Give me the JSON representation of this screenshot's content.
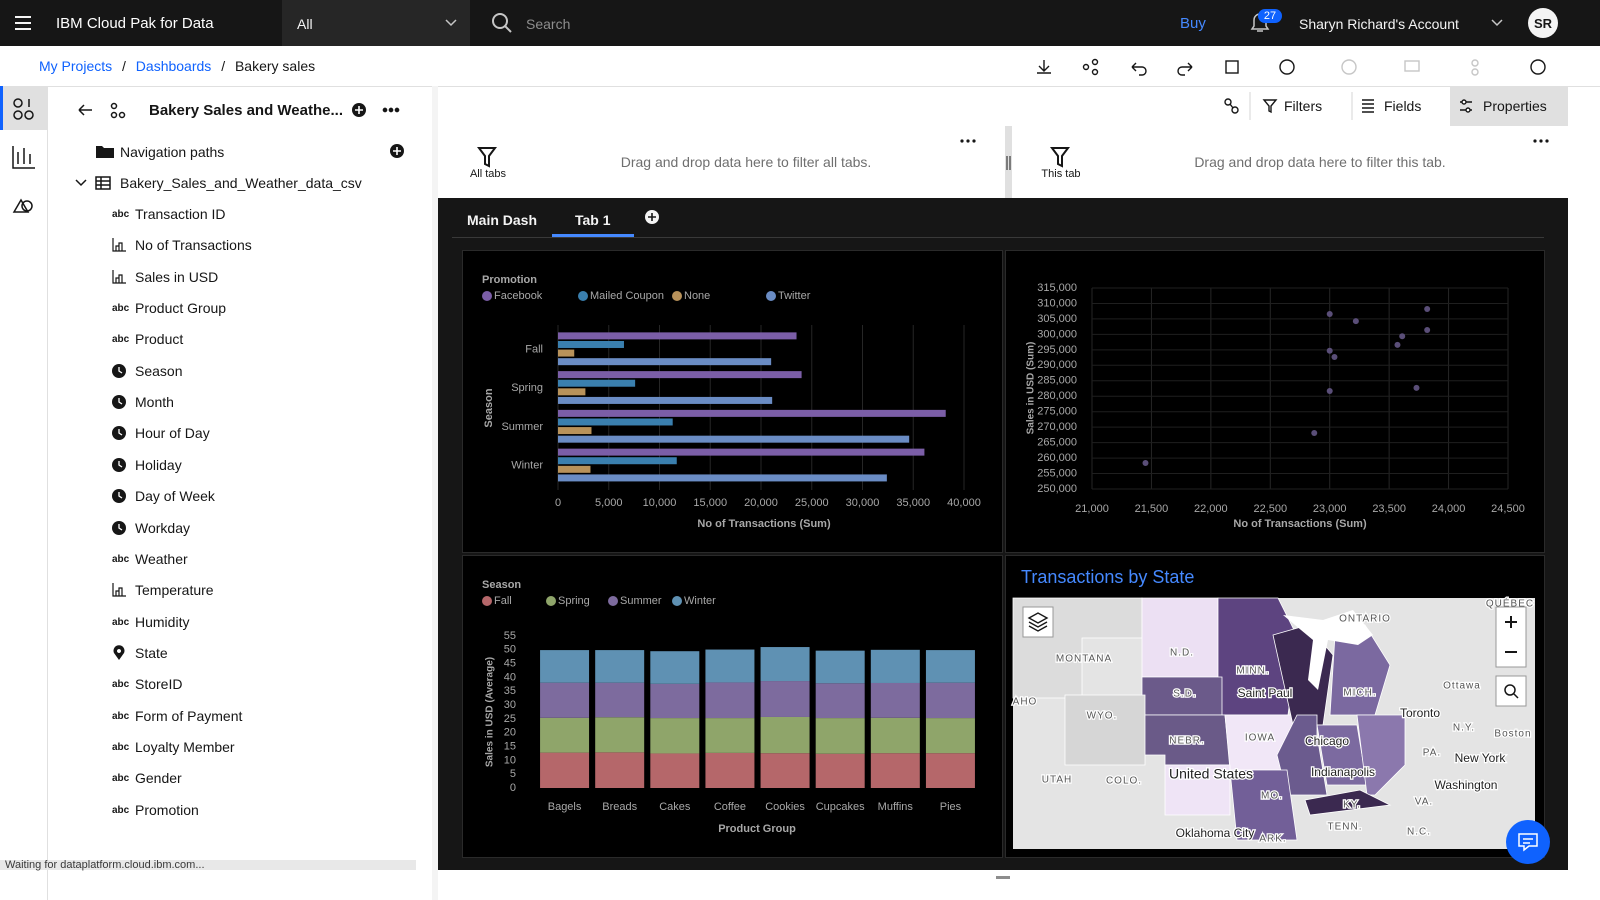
{
  "header": {
    "product": "IBM Cloud Pak for Data",
    "scope": "All",
    "search_placeholder": "Search",
    "buy": "Buy",
    "notifications": 27,
    "account": "Sharyn Richard's Account",
    "avatar": "SR"
  },
  "breadcrumb": {
    "items": [
      "My Projects",
      "Dashboards",
      "Bakery sales"
    ],
    "separator": "/"
  },
  "sidebar": {
    "title": "Bakery Sales and Weathe...",
    "text_icon": "abc",
    "tree": [
      {
        "label": "Navigation paths"
      },
      {
        "label": "Bakery_Sales_and_Weather_data_csv"
      }
    ],
    "fields": [
      {
        "type": "text",
        "label": "Transaction ID"
      },
      {
        "type": "measure",
        "label": "No of Transactions"
      },
      {
        "type": "measure",
        "label": "Sales in USD"
      },
      {
        "type": "text",
        "label": "Product Group"
      },
      {
        "type": "text",
        "label": "Product"
      },
      {
        "type": "time",
        "label": "Season"
      },
      {
        "type": "time",
        "label": "Month"
      },
      {
        "type": "time",
        "label": "Hour of Day"
      },
      {
        "type": "time",
        "label": "Holiday"
      },
      {
        "type": "time",
        "label": "Day of Week"
      },
      {
        "type": "time",
        "label": "Workday"
      },
      {
        "type": "text",
        "label": "Weather"
      },
      {
        "type": "measure",
        "label": "Temperature"
      },
      {
        "type": "text",
        "label": "Humidity"
      },
      {
        "type": "geo",
        "label": "State"
      },
      {
        "type": "text",
        "label": "StoreID"
      },
      {
        "type": "text",
        "label": "Form of Payment"
      },
      {
        "type": "text",
        "label": "Loyalty Member"
      },
      {
        "type": "text",
        "label": "Gender"
      },
      {
        "type": "text",
        "label": "Promotion"
      }
    ]
  },
  "toolbar": {
    "filters": "Filters",
    "fields": "Fields",
    "properties": "Properties"
  },
  "filter_areas": [
    {
      "label": "All tabs",
      "hint": "Drag and drop data here to filter all tabs."
    },
    {
      "label": "This tab",
      "hint": "Drag and drop data here to filter this tab."
    }
  ],
  "tabs": [
    "Main Dash",
    "Tab 1"
  ],
  "active_tab": 1,
  "charts": [
    {
      "type": "bar",
      "orientation": "horizontal",
      "legend_title": "Promotion",
      "y_label": "Season",
      "x_label": "No of Transactions (Sum)",
      "grid": true,
      "categories": [
        "Fall",
        "Spring",
        "Summer",
        "Winter"
      ],
      "series": [
        {
          "name": "Facebook",
          "color": "#7b5ea7",
          "values": [
            23500,
            24000,
            38200,
            36100
          ]
        },
        {
          "name": "Mailed Coupon",
          "color": "#3a7fae",
          "values": [
            6500,
            7600,
            11300,
            11700
          ]
        },
        {
          "name": "None",
          "color": "#b8925a",
          "values": [
            1600,
            2700,
            3300,
            3200
          ]
        },
        {
          "name": "Twitter",
          "color": "#6a8cc4",
          "values": [
            21000,
            21100,
            34600,
            32400
          ]
        }
      ],
      "xlim": [
        0,
        40000
      ],
      "xticks": [
        0,
        {
          "value": 5000,
          "label": "5,000"
        },
        {
          "value": 10000,
          "label": "10,000"
        },
        {
          "value": 15000,
          "label": "15,000"
        },
        {
          "value": 20000,
          "label": "20,000"
        },
        {
          "value": 25000,
          "label": "25,000"
        },
        {
          "value": 30000,
          "label": "30,000"
        },
        {
          "value": 35000,
          "label": "35,000"
        },
        {
          "value": 40000,
          "label": "40,000"
        }
      ]
    },
    {
      "type": "scatter",
      "x_label": "No of Transactions (Sum)",
      "y_label": "Sales in USD (Sum)",
      "color": "#5a4e78",
      "grid": true,
      "x": [
        23000,
        23220,
        23820,
        23820,
        23610,
        23570,
        23000,
        23040,
        23000,
        23730,
        22870,
        21450
      ],
      "values": [
        306600,
        304300,
        308200,
        301400,
        299400,
        296600,
        294700,
        292700,
        281700,
        282700,
        268100,
        258400
      ],
      "xlim": [
        21000,
        24500
      ],
      "xticks": [
        {
          "value": 21000,
          "label": "21,000"
        },
        {
          "value": 21500,
          "label": "21,500"
        },
        {
          "value": 22000,
          "label": "22,000"
        },
        {
          "value": 22500,
          "label": "22,500"
        },
        {
          "value": 23000,
          "label": "23,000"
        },
        {
          "value": 23500,
          "label": "23,500"
        },
        {
          "value": 24000,
          "label": "24,000"
        },
        {
          "value": 24500,
          "label": "24,500"
        }
      ],
      "ylim": [
        250000,
        315000
      ],
      "yticks": [
        {
          "value": 250000,
          "label": "250,000"
        },
        {
          "value": 255000,
          "label": "255,000"
        },
        {
          "value": 260000,
          "label": "260,000"
        },
        {
          "value": 265000,
          "label": "265,000"
        },
        {
          "value": 270000,
          "label": "270,000"
        },
        {
          "value": 275000,
          "label": "275,000"
        },
        {
          "value": 280000,
          "label": "280,000"
        },
        {
          "value": 285000,
          "label": "285,000"
        },
        {
          "value": 290000,
          "label": "290,000"
        },
        {
          "value": 295000,
          "label": "295,000"
        },
        {
          "value": 300000,
          "label": "300,000"
        },
        {
          "value": 305000,
          "label": "305,000"
        },
        {
          "value": 310000,
          "label": "310,000"
        },
        {
          "value": 315000,
          "label": "315,000"
        }
      ]
    },
    {
      "type": "bar",
      "orientation": "vertical",
      "stacked": true,
      "legend_title": "Season",
      "y_label": "Sales in USD (Average)",
      "x_label": "Product Group",
      "grid": false,
      "categories": [
        "Bagels",
        "Breads",
        "Cakes",
        "Coffee",
        "Cookies",
        "Cupcakes",
        "Muffins",
        "Pies"
      ],
      "series": [
        {
          "name": "Fall",
          "color": "#b5676a",
          "values": [
            12.8,
            12.9,
            12.5,
            12.7,
            12.6,
            12.4,
            12.6,
            12.6
          ]
        },
        {
          "name": "Spring",
          "color": "#8fa56a",
          "values": [
            12.6,
            12.7,
            12.8,
            12.6,
            13.1,
            12.9,
            12.8,
            12.7
          ]
        },
        {
          "name": "Summer",
          "color": "#7d6b9e",
          "values": [
            12.7,
            12.5,
            12.4,
            12.9,
            13.0,
            12.6,
            12.6,
            12.8
          ]
        },
        {
          "name": "Winter",
          "color": "#5f91b3",
          "values": [
            11.8,
            11.8,
            11.8,
            11.9,
            12.3,
            11.8,
            12.0,
            11.8
          ]
        }
      ],
      "ylim": [
        0,
        55
      ],
      "yticks": [
        0,
        5,
        10,
        15,
        20,
        25,
        30,
        35,
        40,
        45,
        50,
        55
      ]
    },
    {
      "type": "map",
      "title": "Transactions by State",
      "labels": [
        "ONTARIO",
        "QUÉBEC",
        "MONTANA",
        "N.D.",
        "MINN.",
        "Saint Paul",
        "Ottawa",
        "S.D.",
        "AHO",
        "WYO.",
        "MICH.",
        "Toronto",
        "IOWA",
        "NEBR.",
        "Chicago",
        "N.Y.",
        "Boston",
        "UTAH",
        "COLO.",
        "United States",
        "Indianapolis",
        "PA.",
        "New York",
        "Washington",
        "MO.",
        "KY.",
        "VA.",
        "TENN.",
        "N.C.",
        "Oklahoma City",
        "ARK."
      ]
    }
  ],
  "status": "Waiting for dataplatform.cloud.ibm.com..."
}
